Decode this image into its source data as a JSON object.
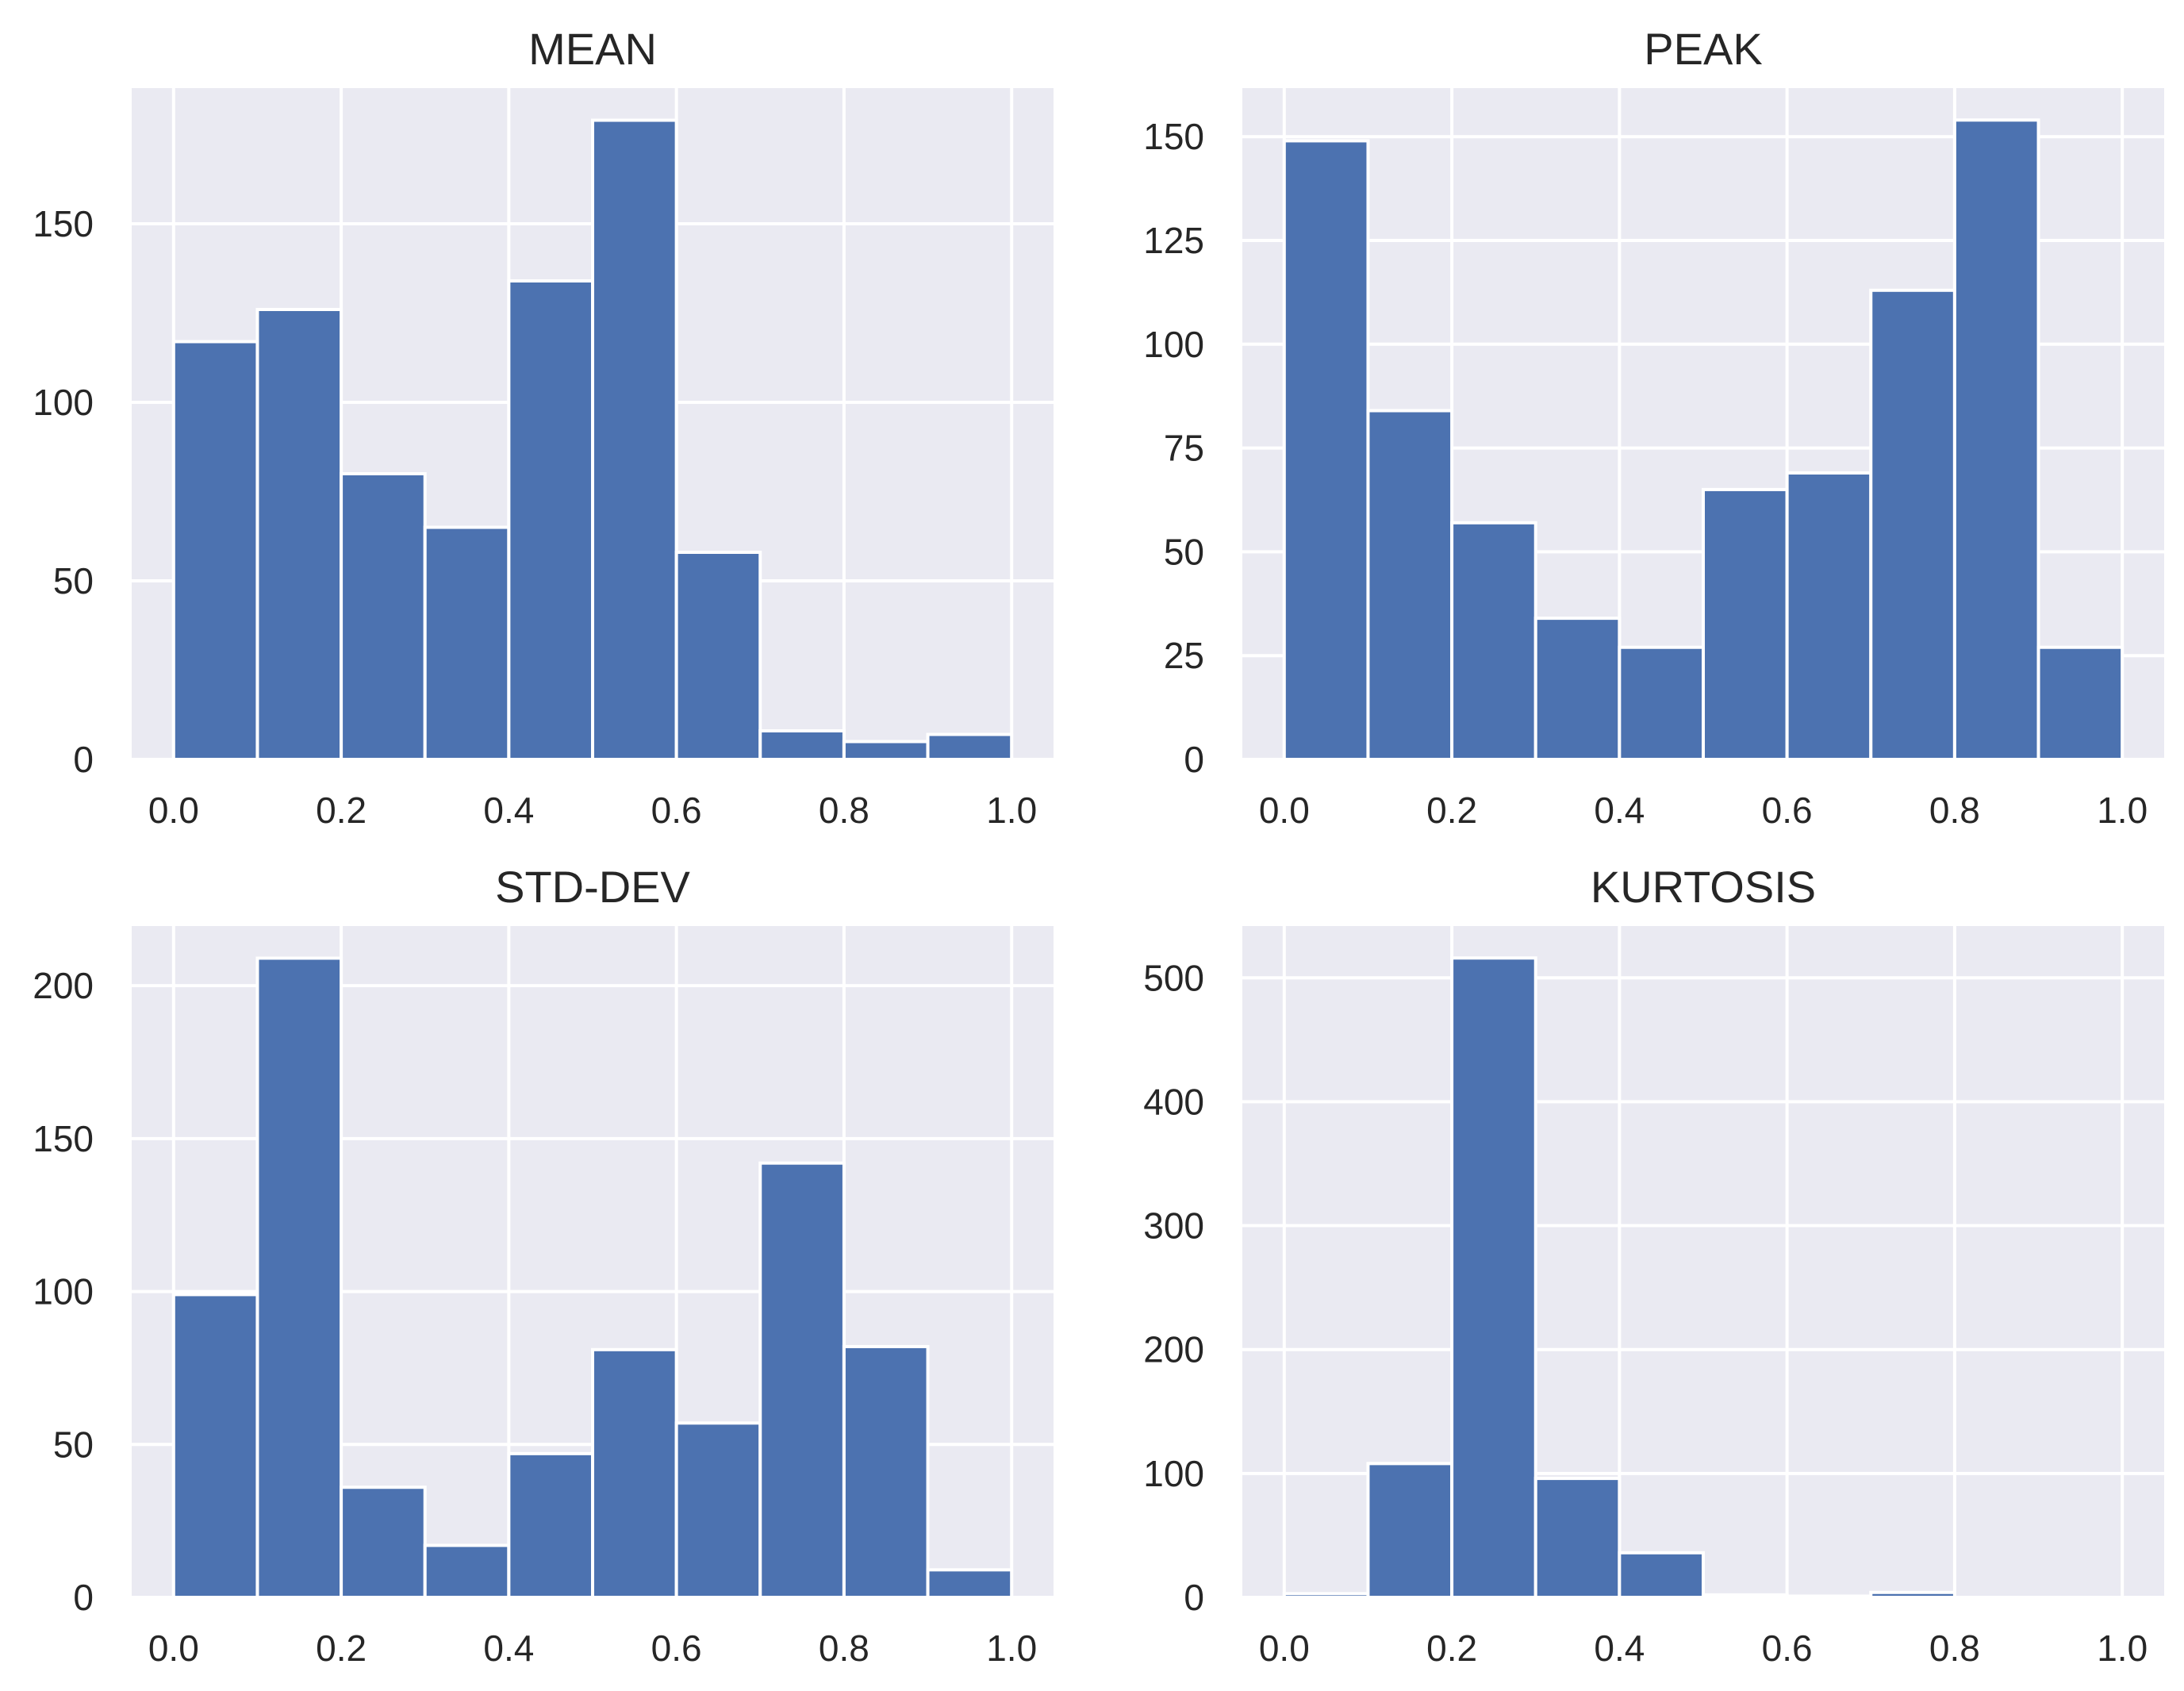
{
  "chart_data": [
    {
      "type": "bar",
      "title": "MEAN",
      "bin_edges": [
        0.0,
        0.1,
        0.2,
        0.3,
        0.4,
        0.5,
        0.6,
        0.7,
        0.8,
        0.9,
        1.0
      ],
      "values": [
        117,
        126,
        80,
        65,
        134,
        179,
        58,
        8,
        5,
        7
      ],
      "xticks": [
        0.0,
        0.2,
        0.4,
        0.6,
        0.8,
        1.0
      ],
      "xtick_labels": [
        "0.0",
        "0.2",
        "0.4",
        "0.6",
        "0.8",
        "1.0"
      ],
      "yticks": [
        0,
        50,
        100,
        150
      ],
      "ytick_labels": [
        "0",
        "50",
        "100",
        "150"
      ],
      "xlim": [
        -0.05,
        1.05
      ],
      "ylim": [
        0,
        188
      ],
      "grid": true
    },
    {
      "type": "bar",
      "title": "PEAK",
      "bin_edges": [
        0.0,
        0.1,
        0.2,
        0.3,
        0.4,
        0.5,
        0.6,
        0.7,
        0.8,
        0.9,
        1.0
      ],
      "values": [
        149,
        84,
        57,
        34,
        27,
        65,
        69,
        113,
        154,
        27
      ],
      "xticks": [
        0.0,
        0.2,
        0.4,
        0.6,
        0.8,
        1.0
      ],
      "xtick_labels": [
        "0.0",
        "0.2",
        "0.4",
        "0.6",
        "0.8",
        "1.0"
      ],
      "yticks": [
        0,
        25,
        50,
        75,
        100,
        125,
        150
      ],
      "ytick_labels": [
        "0",
        "25",
        "50",
        "75",
        "100",
        "125",
        "150"
      ],
      "xlim": [
        -0.05,
        1.05
      ],
      "ylim": [
        0,
        161.7
      ],
      "grid": true
    },
    {
      "type": "bar",
      "title": "STD-DEV",
      "bin_edges": [
        0.0,
        0.1,
        0.2,
        0.3,
        0.4,
        0.5,
        0.6,
        0.7,
        0.8,
        0.9,
        1.0
      ],
      "values": [
        99,
        209,
        36,
        17,
        47,
        81,
        57,
        142,
        82,
        9
      ],
      "xticks": [
        0.0,
        0.2,
        0.4,
        0.6,
        0.8,
        1.0
      ],
      "xtick_labels": [
        "0.0",
        "0.2",
        "0.4",
        "0.6",
        "0.8",
        "1.0"
      ],
      "yticks": [
        0,
        50,
        100,
        150,
        200
      ],
      "ytick_labels": [
        "0",
        "50",
        "100",
        "150",
        "200"
      ],
      "xlim": [
        -0.05,
        1.05
      ],
      "ylim": [
        0,
        219.5
      ],
      "grid": true
    },
    {
      "type": "bar",
      "title": "KURTOSIS",
      "bin_edges": [
        0.0,
        0.1,
        0.2,
        0.3,
        0.4,
        0.5,
        0.6,
        0.7,
        0.8,
        0.9,
        1.0
      ],
      "values": [
        3,
        108,
        516,
        96,
        36,
        2,
        1,
        4,
        0,
        0
      ],
      "xticks": [
        0.0,
        0.2,
        0.4,
        0.6,
        0.8,
        1.0
      ],
      "xtick_labels": [
        "0.0",
        "0.2",
        "0.4",
        "0.6",
        "0.8",
        "1.0"
      ],
      "yticks": [
        0,
        100,
        200,
        300,
        400,
        500
      ],
      "ytick_labels": [
        "0",
        "100",
        "200",
        "300",
        "400",
        "500"
      ],
      "xlim": [
        -0.05,
        1.05
      ],
      "ylim": [
        0,
        541.8
      ],
      "grid": true
    }
  ]
}
